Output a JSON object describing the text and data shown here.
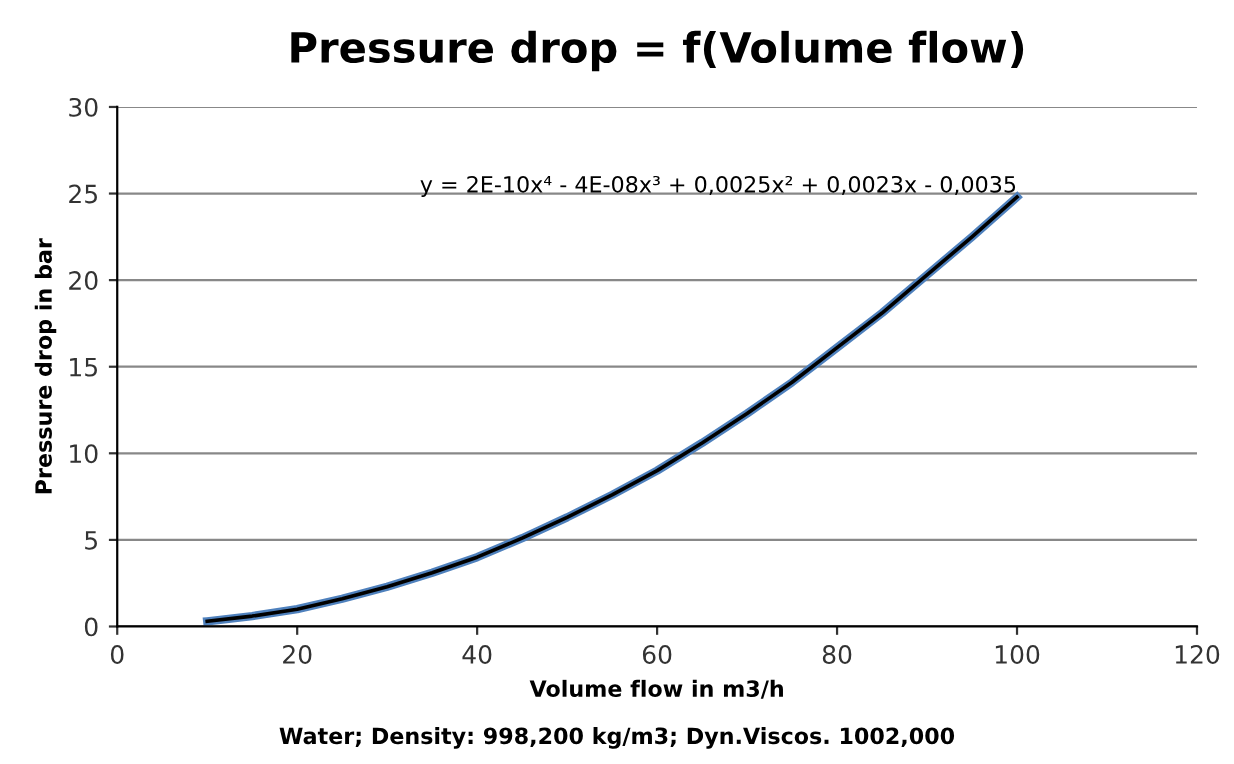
{
  "chart_data": {
    "type": "line",
    "title": "Pressure drop = f(Volume flow)",
    "xlabel": "Volume flow in m3/h",
    "ylabel": "Pressure drop in bar",
    "x": [
      10,
      15,
      20,
      25,
      30,
      35,
      40,
      45,
      50,
      55,
      60,
      65,
      70,
      75,
      80,
      85,
      90,
      95,
      100
    ],
    "series": [
      {
        "color": "#4f81bd",
        "values": [
          0.3,
          0.6,
          1.0,
          1.6,
          2.3,
          3.1,
          4.0,
          5.1,
          6.3,
          7.6,
          9.0,
          10.6,
          12.3,
          14.1,
          16.1,
          18.1,
          20.3,
          22.5,
          24.8
        ]
      },
      {
        "color": "#000000",
        "values": [
          0.3,
          0.6,
          1.0,
          1.6,
          2.3,
          3.1,
          4.0,
          5.1,
          6.3,
          7.6,
          9.0,
          10.6,
          12.3,
          14.1,
          16.1,
          18.1,
          20.3,
          22.5,
          24.8
        ]
      }
    ],
    "xlim": [
      0,
      120
    ],
    "xticks": [
      0,
      20,
      40,
      60,
      80,
      100,
      120
    ],
    "ylim": [
      0,
      30
    ],
    "yticks": [
      0,
      5,
      10,
      15,
      20,
      25,
      30
    ],
    "grid": "y",
    "legend": false,
    "marker": "none",
    "line_style": "solid",
    "annotations": [
      {
        "text": "y = 2E-10x⁴ - 4E-08x³ + 0,0025x² + 0,0023x - 0,0035",
        "x": 100,
        "y": 24.8
      },
      "Water; Density: 998,200 kg/m3; Dyn.Viscos. 1002,000"
    ]
  }
}
